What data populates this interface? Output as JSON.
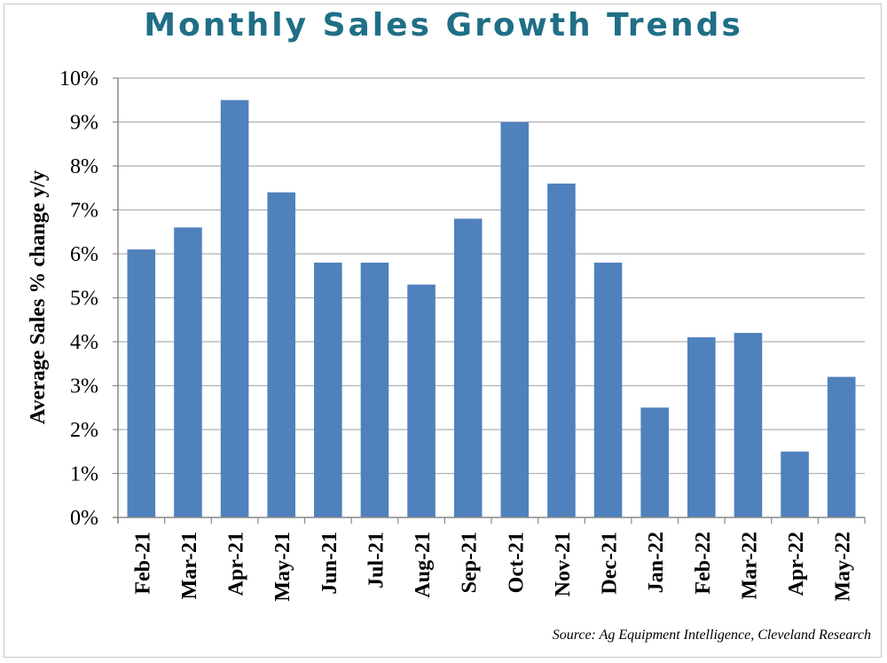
{
  "colors": {
    "title": "#1f6f86",
    "bar": "#4f81bd",
    "grid": "#b0b0b0"
  },
  "chart_data": {
    "type": "bar",
    "title": "Monthly Sales Growth Trends",
    "ylabel": "Average Sales % change y/y",
    "xlabel": "",
    "categories": [
      "Feb-21",
      "Mar-21",
      "Apr-21",
      "May-21",
      "Jun-21",
      "Jul-21",
      "Aug-21",
      "Sep-21",
      "Oct-21",
      "Nov-21",
      "Dec-21",
      "Jan-22",
      "Feb-22",
      "Mar-22",
      "Apr-22",
      "May-22"
    ],
    "values": [
      6.1,
      6.6,
      9.5,
      7.4,
      5.8,
      5.8,
      5.3,
      6.8,
      9.0,
      7.6,
      5.8,
      2.5,
      4.1,
      4.2,
      1.5,
      3.2
    ],
    "ylim": [
      0,
      10
    ],
    "yticks": [
      "0%",
      "1%",
      "2%",
      "3%",
      "4%",
      "5%",
      "6%",
      "7%",
      "8%",
      "9%",
      "10%"
    ],
    "grid": true,
    "source": "Source: Ag Equipment Intelligence, Cleveland Research"
  }
}
